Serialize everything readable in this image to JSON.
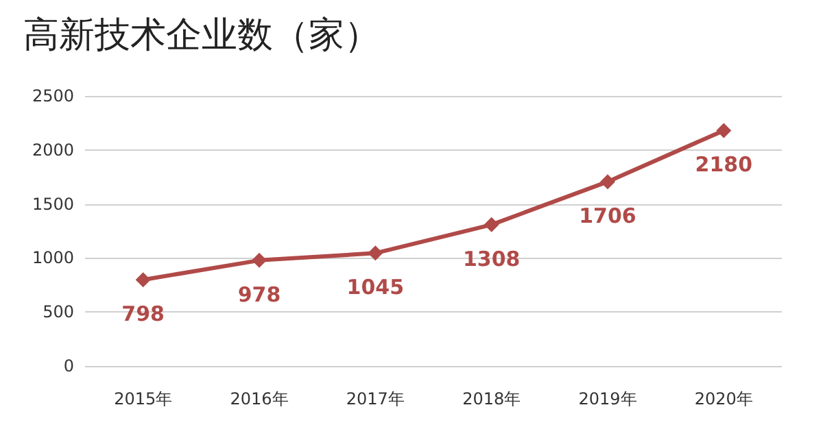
{
  "chart_data": {
    "type": "line",
    "title": "高新技术企业数（家）",
    "categories": [
      "2015年",
      "2016年",
      "2017年",
      "2018年",
      "2019年",
      "2020年"
    ],
    "values": [
      798,
      978,
      1045,
      1308,
      1706,
      2180
    ],
    "color": "#b04a48",
    "ylim": [
      0,
      2500
    ],
    "yticks": [
      0,
      500,
      1000,
      1500,
      2000,
      2500
    ],
    "grid": "y",
    "marker": "diamond",
    "line_style": "solid",
    "data_labels": true
  }
}
